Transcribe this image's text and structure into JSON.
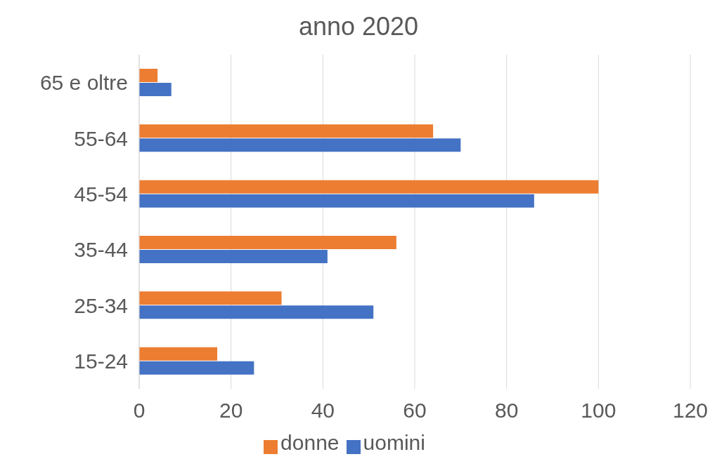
{
  "chart_data": {
    "type": "bar",
    "orientation": "horizontal",
    "title": "anno 2020",
    "categories": [
      "65 e oltre",
      "55-64",
      "45-54",
      "35-44",
      "25-34",
      "15-24"
    ],
    "series": [
      {
        "name": "donne",
        "color": "#ed7d31",
        "values": [
          4,
          64,
          100,
          56,
          31,
          17
        ]
      },
      {
        "name": "uomini",
        "color": "#4472c4",
        "values": [
          7,
          70,
          86,
          41,
          51,
          25
        ]
      }
    ],
    "xlim": [
      0,
      120
    ],
    "xticks": [
      0,
      20,
      40,
      60,
      80,
      100,
      120
    ],
    "grid": "x",
    "legend": "bottom"
  }
}
